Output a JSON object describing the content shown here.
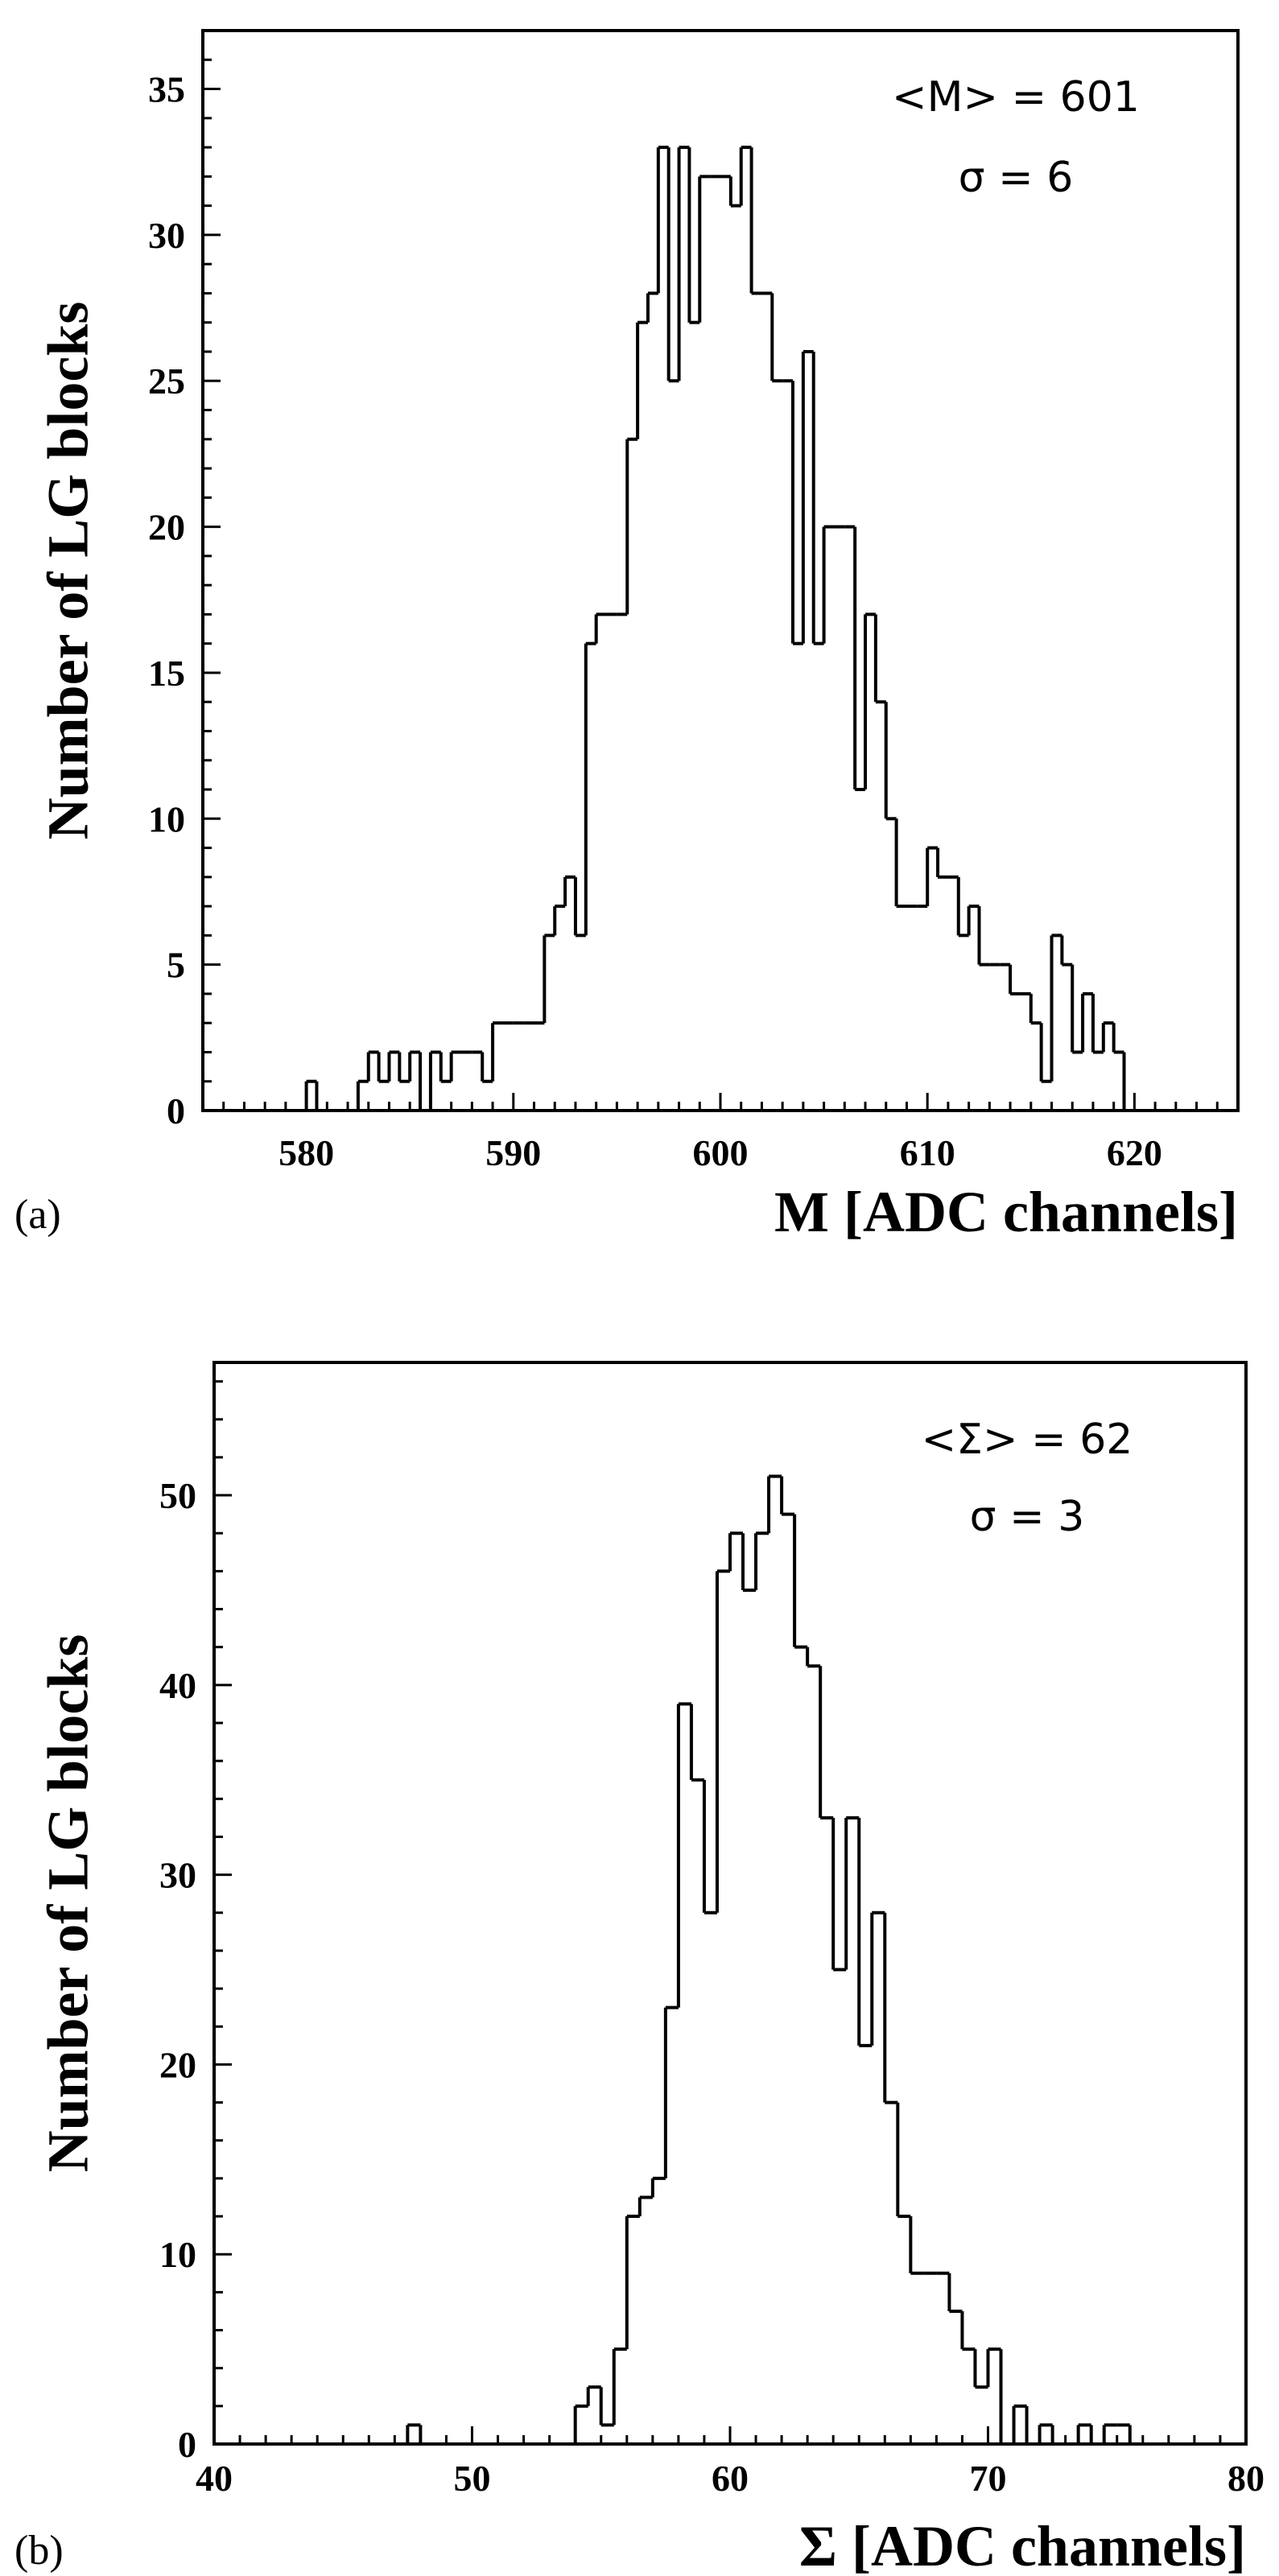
{
  "chart_data": [
    {
      "type": "histogram",
      "panel_label": "(a)",
      "xlabel": "M [ADC channels]",
      "ylabel": "Number of LG blocks",
      "annotations": [
        "<M> = 601",
        "σ = 6"
      ],
      "xlim": [
        575,
        625
      ],
      "ylim": [
        0,
        37
      ],
      "xticks": [
        580,
        590,
        600,
        610,
        620
      ],
      "yticks": [
        0,
        5,
        10,
        15,
        20,
        25,
        30,
        35
      ],
      "bin_width": 0.5,
      "x": [
        579.5,
        580,
        580.5,
        581,
        581.5,
        582,
        582.5,
        583,
        583.5,
        584,
        584.5,
        585,
        585.5,
        586,
        586.5,
        587,
        587.5,
        588,
        588.5,
        589,
        589.5,
        590,
        590.5,
        591,
        591.5,
        592,
        592.5,
        593,
        593.5,
        594,
        594.5,
        595,
        595.5,
        596,
        596.5,
        597,
        597.5,
        598,
        598.5,
        599,
        599.5,
        600,
        600.5,
        601,
        601.5,
        602,
        602.5,
        603,
        603.5,
        604,
        604.5,
        605,
        605.5,
        606,
        606.5,
        607,
        607.5,
        608,
        608.5,
        609,
        609.5,
        610,
        610.5,
        611,
        611.5,
        612,
        612.5,
        613,
        613.5,
        614,
        614.5,
        615,
        615.5,
        616,
        616.5,
        617,
        617.5,
        618,
        618.5,
        619,
        619.5
      ],
      "values": [
        0,
        1,
        0,
        0,
        0,
        0,
        1,
        2,
        1,
        2,
        1,
        2,
        0,
        2,
        1,
        2,
        2,
        2,
        1,
        3,
        3,
        3,
        3,
        3,
        6,
        7,
        8,
        6,
        16,
        17,
        17,
        17,
        23,
        27,
        28,
        33,
        25,
        33,
        27,
        32,
        32,
        32,
        31,
        33,
        28,
        28,
        25,
        25,
        16,
        26,
        16,
        20,
        20,
        20,
        11,
        17,
        14,
        10,
        7,
        7,
        7,
        9,
        8,
        8,
        6,
        7,
        5,
        5,
        5,
        4,
        4,
        3,
        1,
        6,
        5,
        2,
        4,
        2,
        3,
        2,
        0
      ],
      "grid": false
    },
    {
      "type": "histogram",
      "panel_label": "(b)",
      "xlabel": "Σ [ADC channels]",
      "ylabel": "Number of LG blocks",
      "annotations": [
        "<Σ> = 62",
        "σ = 3"
      ],
      "xlim": [
        40,
        80
      ],
      "ylim": [
        0,
        57
      ],
      "xticks": [
        40,
        50,
        60,
        70,
        80
      ],
      "yticks": [
        0,
        10,
        20,
        30,
        40,
        50
      ],
      "bin_width": 0.5,
      "x": [
        47.5,
        54,
        54.5,
        55,
        55.5,
        56,
        56.5,
        57,
        57.5,
        58,
        58.5,
        59,
        59.5,
        60,
        60.5,
        61,
        61.5,
        62,
        62.5,
        63,
        63.5,
        64,
        64.5,
        65,
        65.5,
        66,
        66.5,
        67,
        67.5,
        68,
        68.5,
        69,
        69.5,
        70,
        71,
        72,
        73.5,
        74.5,
        75
      ],
      "values": [
        1,
        2,
        3,
        1,
        5,
        12,
        13,
        14,
        23,
        39,
        35,
        28,
        46,
        48,
        45,
        48,
        51,
        49,
        42,
        41,
        33,
        25,
        33,
        21,
        28,
        18,
        12,
        9,
        9,
        9,
        7,
        5,
        3,
        5,
        2,
        1,
        1,
        1,
        1
      ],
      "grid": false
    }
  ]
}
